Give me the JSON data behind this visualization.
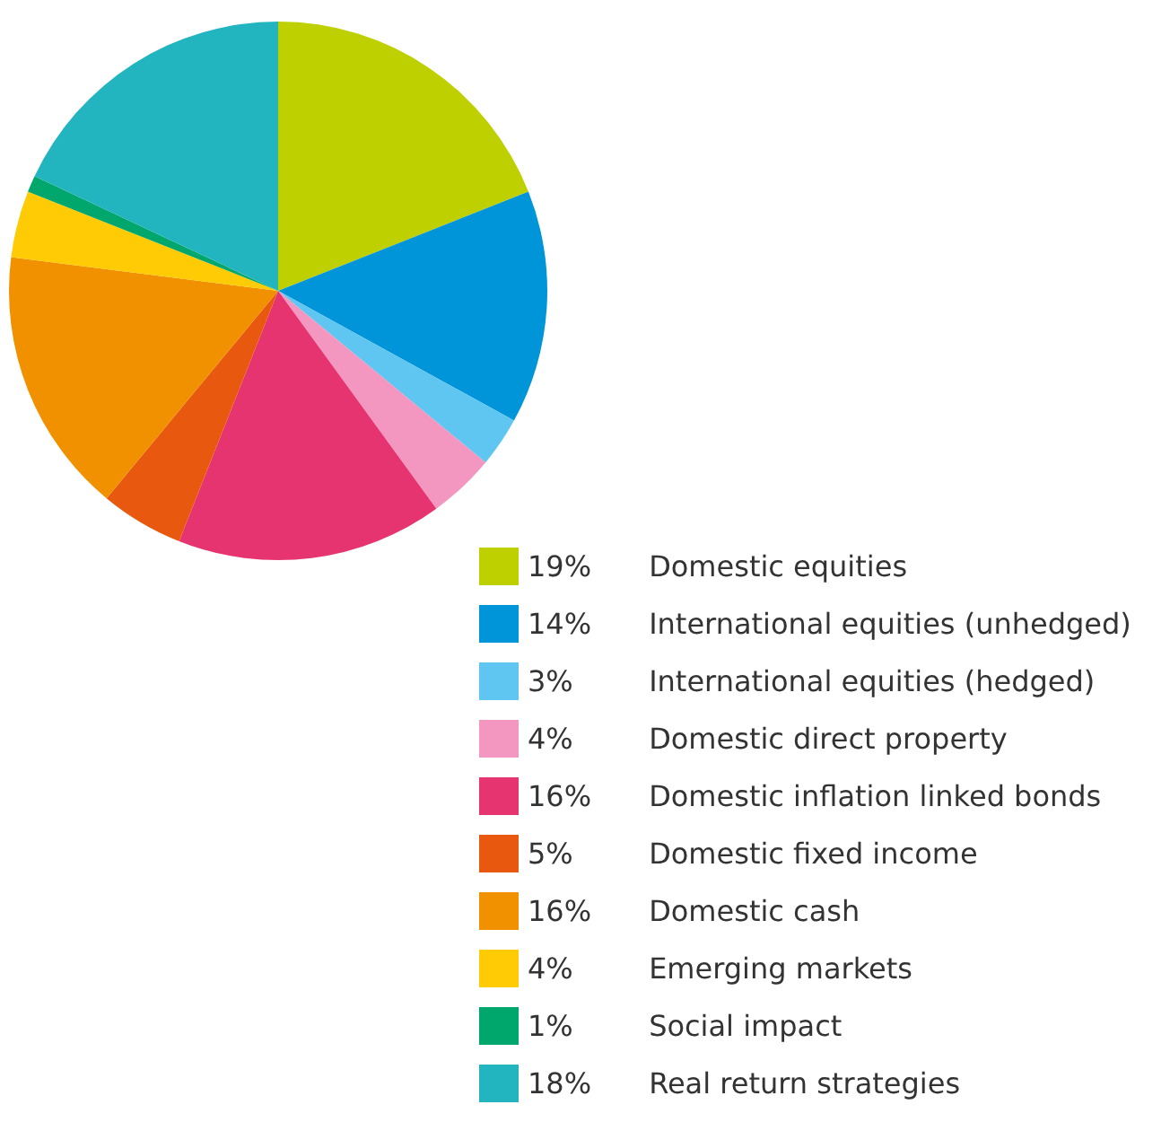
{
  "chart_data": {
    "type": "pie",
    "categories": [
      "Domestic equities",
      "International equities (unhedged)",
      "International equities (hedged)",
      "Domestic direct property",
      "Domestic inflation linked bonds",
      "Domestic fixed income",
      "Domestic cash",
      "Emerging markets",
      "Social impact",
      "Real return strategies"
    ],
    "values": [
      19,
      14,
      3,
      4,
      16,
      5,
      16,
      4,
      1,
      18
    ],
    "value_labels": [
      "19%",
      "14%",
      "3%",
      "4%",
      "16%",
      "5%",
      "16%",
      "4%",
      "1%",
      "18%"
    ],
    "colors": [
      "#bfd000",
      "#0095d9",
      "#5ec6f0",
      "#f396c0",
      "#e5346f",
      "#e8590f",
      "#f29100",
      "#ffcb05",
      "#00a76d",
      "#22b5bf"
    ],
    "legend": "bottom right"
  }
}
